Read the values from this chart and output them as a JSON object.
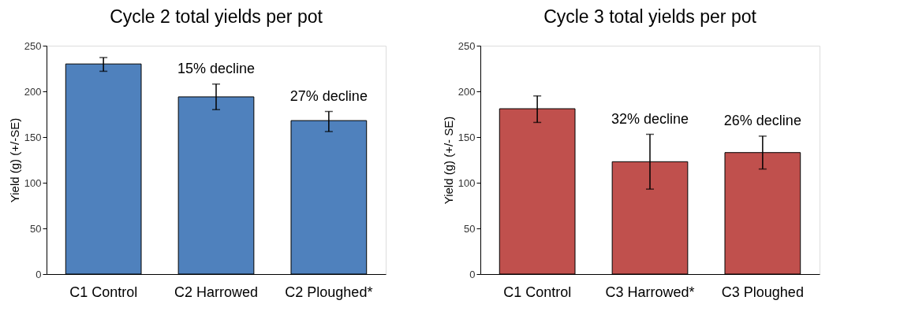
{
  "chart_data": [
    {
      "type": "bar",
      "title": "Cycle 2 total yields per pot",
      "ylabel": "Yield (g) (+/-SE)",
      "categories": [
        "C1 Control",
        "C2 Harrowed",
        "C2 Ploughed*"
      ],
      "series": [
        {
          "color": "#4f81bd",
          "values": [
            230,
            194,
            168
          ],
          "errors": [
            [
              222,
              237
            ],
            [
              180,
              208
            ],
            [
              156,
              178
            ]
          ]
        }
      ],
      "ylim": [
        0,
        250
      ],
      "yticks": [
        0,
        50,
        100,
        150,
        200,
        250
      ],
      "annotations": [
        "15% decline",
        "27% decline"
      ]
    },
    {
      "type": "bar",
      "title": "Cycle 3 total yields per pot",
      "ylabel": "Yield (g) (+/- SE)",
      "categories": [
        "C1 Control",
        "C3 Harrowed*",
        "C3 Ploughed"
      ],
      "series": [
        {
          "color": "#c0504d",
          "values": [
            181,
            123,
            133
          ],
          "errors": [
            [
              166,
              195
            ],
            [
              93,
              153
            ],
            [
              115,
              151
            ]
          ]
        }
      ],
      "ylim": [
        0,
        250
      ],
      "yticks": [
        0,
        50,
        100,
        150,
        200,
        250
      ],
      "annotations": [
        "32% decline",
        "26% decline"
      ]
    }
  ]
}
